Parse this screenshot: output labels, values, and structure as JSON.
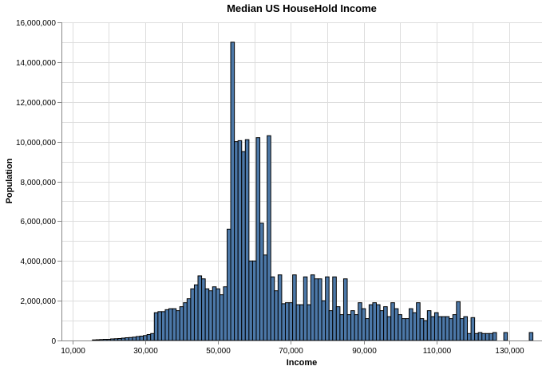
{
  "chart_data": {
    "type": "bar",
    "title": "Median US HouseHold Income",
    "xlabel": "Income",
    "ylabel": "Population",
    "xlim": [
      7000,
      139000
    ],
    "ylim": [
      0,
      16000000
    ],
    "x_ticks": [
      "10,000",
      "30,000",
      "50,000",
      "70,000",
      "90,000",
      "110,000",
      "130,000"
    ],
    "x_tick_values": [
      10000,
      30000,
      50000,
      70000,
      90000,
      110000,
      130000
    ],
    "y_ticks": [
      "0",
      "2,000,000",
      "4,000,000",
      "6,000,000",
      "8,000,000",
      "10,000,000",
      "12,000,000",
      "14,000,000",
      "16,000,000"
    ],
    "y_tick_values": [
      0,
      2000000,
      4000000,
      6000000,
      8000000,
      10000000,
      12000000,
      14000000,
      16000000
    ],
    "grid": true,
    "bar_width": 1000,
    "bar_color": "#4c78a8",
    "bar_stroke": "#000000",
    "series": [
      {
        "x": [
          16000,
          17000,
          18000,
          19000,
          20000,
          21000,
          22000,
          23000,
          24000,
          25000,
          26000,
          27000,
          28000,
          29000,
          30000,
          31000,
          32000,
          33000,
          34000,
          35000,
          36000,
          37000,
          38000,
          39000,
          40000,
          41000,
          42000,
          43000,
          44000,
          45000,
          46000,
          47000,
          48000,
          49000,
          50000,
          51000,
          52000,
          53000,
          54000,
          55000,
          56000,
          57000,
          58000,
          59000,
          60000,
          61000,
          62000,
          63000,
          64000,
          65000,
          66000,
          67000,
          68000,
          69000,
          70000,
          71000,
          72000,
          73000,
          74000,
          75000,
          76000,
          77000,
          78000,
          79000,
          80000,
          81000,
          82000,
          83000,
          84000,
          85000,
          86000,
          87000,
          88000,
          89000,
          90000,
          91000,
          92000,
          93000,
          94000,
          95000,
          96000,
          97000,
          98000,
          99000,
          100000,
          101000,
          102000,
          103000,
          104000,
          105000,
          106000,
          107000,
          108000,
          109000,
          110000,
          111000,
          112000,
          113000,
          114000,
          115000,
          116000,
          117000,
          118000,
          119000,
          120000,
          121000,
          122000,
          123000,
          124000,
          125000,
          126000,
          129000,
          136000
        ],
        "values": [
          30000,
          40000,
          50000,
          60000,
          60000,
          80000,
          90000,
          100000,
          120000,
          140000,
          150000,
          170000,
          200000,
          220000,
          250000,
          300000,
          350000,
          1400000,
          1450000,
          1450000,
          1550000,
          1600000,
          1600000,
          1500000,
          1700000,
          1900000,
          2100000,
          2600000,
          2800000,
          3250000,
          3100000,
          2600000,
          2500000,
          2700000,
          2600000,
          2300000,
          2700000,
          5600000,
          15000000,
          10000000,
          10050000,
          9500000,
          10100000,
          4000000,
          4000000,
          10200000,
          5900000,
          4300000,
          10300000,
          3200000,
          2500000,
          3300000,
          1850000,
          1900000,
          1900000,
          3300000,
          1800000,
          1800000,
          3200000,
          1800000,
          3300000,
          3100000,
          3100000,
          2000000,
          3200000,
          1500000,
          3200000,
          1700000,
          1300000,
          3100000,
          1300000,
          1500000,
          1300000,
          1900000,
          1600000,
          1100000,
          1800000,
          1900000,
          1800000,
          1500000,
          1700000,
          1200000,
          1900000,
          1600000,
          1300000,
          1100000,
          1100000,
          1600000,
          1400000,
          1900000,
          1100000,
          1000000,
          1500000,
          1200000,
          1400000,
          1200000,
          1200000,
          1200000,
          1100000,
          1300000,
          1950000,
          1100000,
          1200000,
          350000,
          1150000,
          350000,
          400000,
          350000,
          350000,
          350000,
          400000,
          400000,
          400000
        ]
      }
    ]
  }
}
